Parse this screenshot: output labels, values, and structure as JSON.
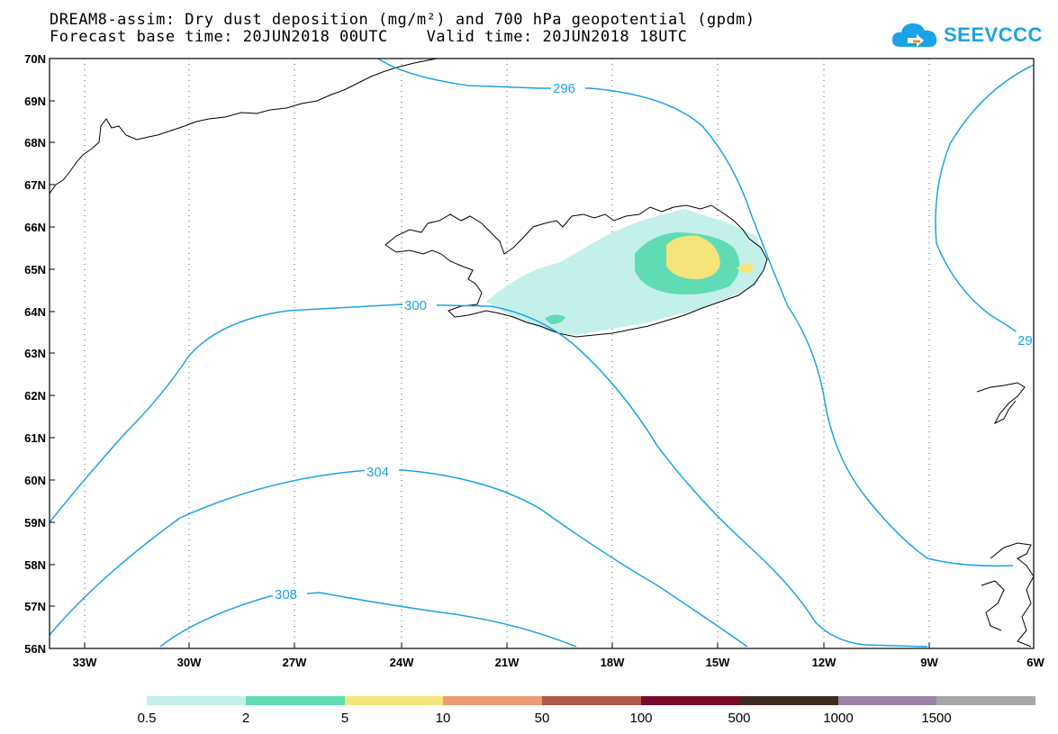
{
  "header": {
    "title_line1": "DREAM8-assim: Dry dust deposition (mg/m²) and 700 hPa geopotential (gpdm)",
    "title_line2": "Forecast base time: 20JUN2018 00UTC    Valid time: 20JUN2018 18UTC"
  },
  "logo": {
    "text": "SEEVCCC",
    "icon": "cloud-logo-icon",
    "color": "#1ba3e6"
  },
  "map": {
    "lat_labels": [
      "70N",
      "69N",
      "68N",
      "67N",
      "66N",
      "65N",
      "64N",
      "63N",
      "62N",
      "61N",
      "60N",
      "59N",
      "58N",
      "57N",
      "56N"
    ],
    "lon_labels": [
      "33W",
      "30W",
      "27W",
      "24W",
      "21W",
      "18W",
      "15W",
      "12W",
      "9W",
      "6W"
    ],
    "contour_color": "#1ba3e6",
    "contour_labels": [
      "296",
      "300",
      "304",
      "308",
      "29"
    ]
  },
  "legend": {
    "colors": [
      "#c4f0ea",
      "#5fdcb4",
      "#f5e47a",
      "#ee9a72",
      "#b0584a",
      "#7a0a2a",
      "#3d2b20",
      "#9b82a8",
      "#a6a6a6"
    ],
    "labels": [
      "0.5",
      "2",
      "5",
      "10",
      "50",
      "100",
      "500",
      "1000",
      "1500"
    ]
  }
}
